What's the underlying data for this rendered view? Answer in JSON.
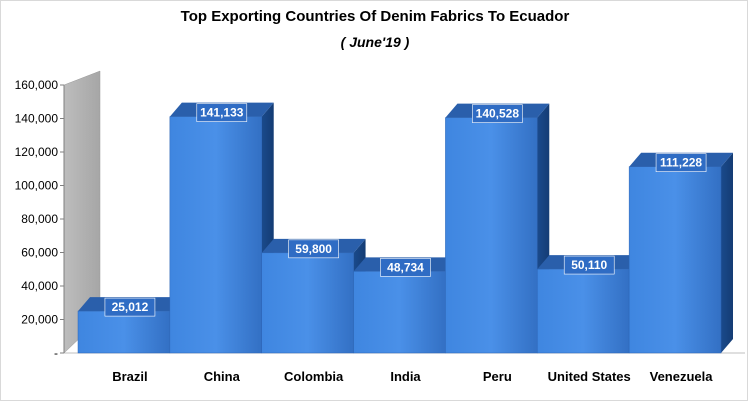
{
  "chart_data": {
    "type": "bar",
    "title": "Top Exporting Countries Of Denim Fabrics To Ecuador",
    "subtitle": "( June'19 )",
    "categories": [
      "Brazil",
      "China",
      "Colombia",
      "India",
      "Peru",
      "United States",
      "Venezuela"
    ],
    "values": [
      25012,
      141133,
      59800,
      48734,
      140528,
      50110,
      111228
    ],
    "data_labels": [
      "25,012",
      "141,133",
      "59,800",
      "48,734",
      "140,528",
      "50,110",
      "111,228"
    ],
    "ylim": [
      0,
      160000
    ],
    "yticks": [
      0,
      20000,
      40000,
      60000,
      80000,
      100000,
      120000,
      140000,
      160000
    ],
    "ytick_labels": [
      "-",
      "20,000",
      "40,000",
      "60,000",
      "80,000",
      "100,000",
      "120,000",
      "140,000",
      "160,000"
    ],
    "xlabel": "",
    "ylabel": "",
    "style": "3d-column",
    "bar_color": "#3a7bd5",
    "grid": false,
    "legend": "none"
  }
}
